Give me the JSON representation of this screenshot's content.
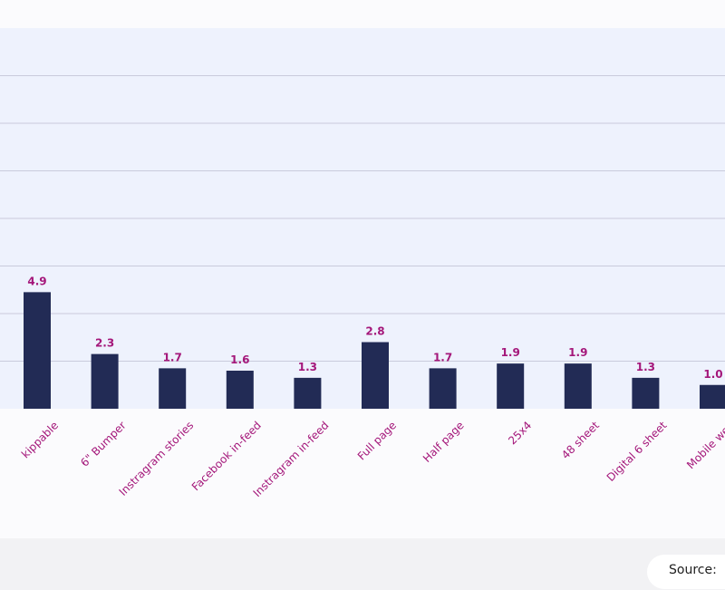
{
  "chart_data": {
    "type": "bar",
    "categories": [
      "kippable",
      "6\" Bumper",
      "Instragram stories",
      "Facebook in-feed",
      "Instragram in-feed",
      "Full page",
      "Half page",
      "25x4",
      "48 sheet",
      "Digital 6 sheet",
      "Mobile web"
    ],
    "values": [
      4.9,
      2.3,
      1.7,
      1.6,
      1.3,
      2.8,
      1.7,
      1.9,
      1.9,
      1.3,
      1.0
    ],
    "value_labels": [
      "4.9",
      "2.3",
      "1.7",
      "1.6",
      "1.3",
      "2.8",
      "1.7",
      "1.9",
      "1.9",
      "1.3",
      "1.0"
    ],
    "ylim": [
      0,
      16
    ],
    "grid": true,
    "colors": {
      "bar": "#222b55",
      "label": "#a4177a",
      "plot_bg": "#eef2fd",
      "grid": "#c9cbdc"
    }
  },
  "footer": {
    "source_label": "Source:"
  }
}
